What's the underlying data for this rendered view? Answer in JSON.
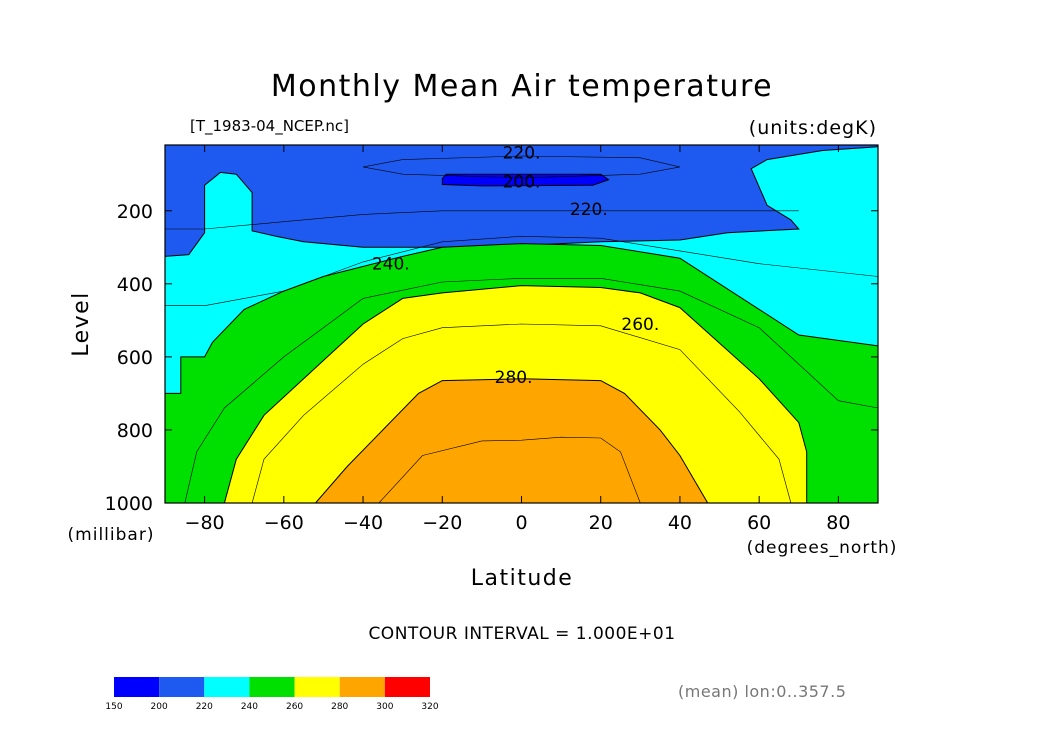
{
  "chart_data": {
    "type": "contour",
    "title": "Monthly Mean Air temperature",
    "file_label": "[T_1983-04_NCEP.nc]",
    "units_label": "(units:degK)",
    "xlabel": "Latitude",
    "x_units": "(degrees_north)",
    "ylabel": "Level",
    "y_units": "(millibar)",
    "xlim": [
      -90,
      90
    ],
    "ylim": [
      1000,
      20
    ],
    "x_ticks": [
      -80,
      -60,
      -40,
      -20,
      0,
      20,
      40,
      60,
      80
    ],
    "x_tick_labels": [
      "−80",
      "−60",
      "−40",
      "−20",
      "0",
      "20",
      "40",
      "60",
      "80"
    ],
    "y_ticks": [
      200,
      400,
      600,
      800,
      1000
    ],
    "y_tick_labels": [
      "200",
      "400",
      "600",
      "800",
      "1000"
    ],
    "contour_interval_text": "CONTOUR INTERVAL = 1.000E+01",
    "contour_labels": [
      {
        "text": "220.",
        "lat": 0,
        "level": 40
      },
      {
        "text": "200.",
        "lat": 0,
        "level": 120
      },
      {
        "text": "220.",
        "lat": 17,
        "level": 195
      },
      {
        "text": "240.",
        "lat": -33,
        "level": 345
      },
      {
        "text": "260.",
        "lat": 30,
        "level": 510
      },
      {
        "text": "280.",
        "lat": -2,
        "level": 655
      }
    ],
    "note": "(mean) lon:0..357.5",
    "colorbar": {
      "boundaries": [
        150,
        200,
        220,
        240,
        260,
        280,
        300,
        320
      ],
      "labels": [
        "150",
        "200",
        "220",
        "240",
        "260",
        "280",
        "300",
        "320"
      ],
      "colors": [
        "#0000ff",
        "#1e5af0",
        "#00ffff",
        "#00e000",
        "#ffff00",
        "#ffa500",
        "#ff0000"
      ]
    },
    "bands": [
      {
        "name": "200-220",
        "color": "#1e5af0",
        "outline": [
          [
            -90,
            20
          ],
          [
            90,
            20
          ],
          [
            90,
            25
          ],
          [
            76,
            35
          ],
          [
            62,
            60
          ],
          [
            58,
            85
          ],
          [
            62,
            185
          ],
          [
            68,
            225
          ],
          [
            70,
            250
          ],
          [
            52,
            260
          ],
          [
            40,
            280
          ],
          [
            20,
            285
          ],
          [
            0,
            295
          ],
          [
            -20,
            300
          ],
          [
            -40,
            300
          ],
          [
            -55,
            285
          ],
          [
            -62,
            270
          ],
          [
            -68,
            255
          ],
          [
            -68,
            150
          ],
          [
            -72,
            100
          ],
          [
            -76,
            95
          ],
          [
            -80,
            130
          ],
          [
            -80,
            260
          ],
          [
            -84,
            320
          ],
          [
            -90,
            325
          ]
        ]
      },
      {
        "name": "< 200",
        "color": "#0000ff",
        "outline": [
          [
            -19,
            100
          ],
          [
            20,
            100
          ],
          [
            22,
            115
          ],
          [
            18,
            130
          ],
          [
            -10,
            132
          ],
          [
            -20,
            128
          ],
          [
            -20,
            112
          ]
        ]
      },
      {
        "name": "240-260",
        "color": "#00e000",
        "outline": [
          [
            -90,
            1000
          ],
          [
            -90,
            700
          ],
          [
            -86,
            700
          ],
          [
            -86,
            600
          ],
          [
            -80,
            600
          ],
          [
            -78,
            560
          ],
          [
            -70,
            470
          ],
          [
            -60,
            420
          ],
          [
            -50,
            380
          ],
          [
            -30,
            325
          ],
          [
            -20,
            300
          ],
          [
            0,
            290
          ],
          [
            20,
            295
          ],
          [
            40,
            330
          ],
          [
            60,
            470
          ],
          [
            70,
            540
          ],
          [
            90,
            570
          ],
          [
            90,
            1000
          ]
        ]
      },
      {
        "name": "260-280",
        "color": "#ffff00",
        "outline": [
          [
            -75,
            1000
          ],
          [
            -72,
            880
          ],
          [
            -65,
            760
          ],
          [
            -50,
            610
          ],
          [
            -40,
            510
          ],
          [
            -30,
            440
          ],
          [
            -20,
            425
          ],
          [
            0,
            405
          ],
          [
            20,
            410
          ],
          [
            30,
            425
          ],
          [
            40,
            465
          ],
          [
            60,
            660
          ],
          [
            70,
            780
          ],
          [
            72,
            860
          ],
          [
            72,
            1000
          ]
        ]
      },
      {
        "name": "280-300",
        "color": "#ffa500",
        "outline": [
          [
            -52,
            1000
          ],
          [
            -44,
            900
          ],
          [
            -35,
            800
          ],
          [
            -26,
            700
          ],
          [
            -20,
            665
          ],
          [
            0,
            660
          ],
          [
            20,
            665
          ],
          [
            26,
            700
          ],
          [
            35,
            800
          ],
          [
            40,
            870
          ],
          [
            47,
            1000
          ]
        ]
      }
    ],
    "isolines": [
      [
        [
          -90,
          460
        ],
        [
          -80,
          460
        ],
        [
          -60,
          420
        ],
        [
          -40,
          340
        ],
        [
          -20,
          285
        ],
        [
          0,
          270
        ],
        [
          20,
          275
        ],
        [
          40,
          310
        ],
        [
          60,
          345
        ],
        [
          90,
          380
        ]
      ],
      [
        [
          -90,
          250
        ],
        [
          -80,
          250
        ],
        [
          -60,
          230
        ],
        [
          -40,
          210
        ],
        [
          -20,
          200
        ],
        [
          0,
          200
        ],
        [
          20,
          200
        ],
        [
          40,
          200
        ],
        [
          60,
          200
        ],
        [
          70,
          200
        ]
      ],
      [
        [
          -40,
          80
        ],
        [
          -30,
          60
        ],
        [
          0,
          50
        ],
        [
          30,
          55
        ],
        [
          40,
          80
        ],
        [
          30,
          100
        ],
        [
          0,
          110
        ],
        [
          -30,
          100
        ],
        [
          -40,
          80
        ]
      ],
      [
        [
          -85,
          1000
        ],
        [
          -82,
          860
        ],
        [
          -75,
          740
        ],
        [
          -60,
          600
        ],
        [
          -50,
          520
        ],
        [
          -40,
          440
        ],
        [
          -20,
          395
        ],
        [
          0,
          385
        ],
        [
          20,
          385
        ],
        [
          40,
          420
        ],
        [
          60,
          520
        ],
        [
          80,
          720
        ],
        [
          90,
          740
        ]
      ],
      [
        [
          -68,
          1000
        ],
        [
          -65,
          880
        ],
        [
          -55,
          760
        ],
        [
          -40,
          620
        ],
        [
          -30,
          550
        ],
        [
          -20,
          520
        ],
        [
          0,
          510
        ],
        [
          20,
          515
        ],
        [
          40,
          580
        ],
        [
          55,
          750
        ],
        [
          65,
          880
        ],
        [
          68,
          1000
        ]
      ],
      [
        [
          -36,
          1000
        ],
        [
          -25,
          870
        ],
        [
          -10,
          830
        ],
        [
          0,
          828
        ],
        [
          10,
          820
        ],
        [
          20,
          822
        ],
        [
          25,
          860
        ],
        [
          30,
          1000
        ]
      ]
    ]
  }
}
